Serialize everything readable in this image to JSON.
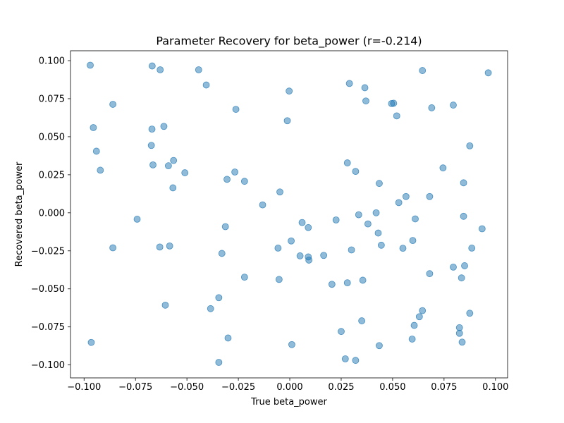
{
  "chart_data": {
    "type": "scatter",
    "title": "Parameter Recovery for beta_power (r=-0.214)",
    "xlabel": "True beta_power",
    "ylabel": "Recovered beta_power",
    "xlim": [
      -0.1066,
      0.1059
    ],
    "ylim": [
      -0.1085,
      0.1065
    ],
    "xticks": [
      -0.1,
      -0.075,
      -0.05,
      -0.025,
      0.0,
      0.025,
      0.05,
      0.075,
      0.1
    ],
    "xtick_labels": [
      "−0.100",
      "−0.075",
      "−0.050",
      "−0.025",
      "0.000",
      "0.025",
      "0.050",
      "0.075",
      "0.100"
    ],
    "yticks": [
      -0.1,
      -0.075,
      -0.05,
      -0.025,
      0.0,
      0.025,
      0.05,
      0.075,
      0.1
    ],
    "ytick_labels": [
      "−0.100",
      "−0.075",
      "−0.050",
      "−0.025",
      "0.000",
      "0.025",
      "0.050",
      "0.075",
      "0.100"
    ],
    "grid": false,
    "legend": "none",
    "marker_color": "#1f77b4",
    "marker_alpha": 0.5,
    "points": [
      {
        "x": -0.097,
        "y": 0.097
      },
      {
        "x": -0.0669,
        "y": 0.0965
      },
      {
        "x": -0.063,
        "y": 0.094
      },
      {
        "x": -0.0443,
        "y": 0.094
      },
      {
        "x": -0.0406,
        "y": 0.084
      },
      {
        "x": -0.086,
        "y": 0.0713
      },
      {
        "x": -0.0262,
        "y": 0.068
      },
      {
        "x": -0.0003,
        "y": 0.08
      },
      {
        "x": -0.0955,
        "y": 0.056
      },
      {
        "x": -0.067,
        "y": 0.055
      },
      {
        "x": -0.0612,
        "y": 0.0568
      },
      {
        "x": -0.0012,
        "y": 0.0605
      },
      {
        "x": -0.094,
        "y": 0.0405
      },
      {
        "x": -0.0673,
        "y": 0.0443
      },
      {
        "x": -0.0565,
        "y": 0.0344
      },
      {
        "x": -0.059,
        "y": 0.0309
      },
      {
        "x": -0.0665,
        "y": 0.0315
      },
      {
        "x": -0.0921,
        "y": 0.028
      },
      {
        "x": -0.051,
        "y": 0.0263
      },
      {
        "x": -0.0568,
        "y": 0.0164
      },
      {
        "x": -0.0267,
        "y": 0.0268
      },
      {
        "x": -0.0305,
        "y": 0.022
      },
      {
        "x": -0.022,
        "y": 0.0207
      },
      {
        "x": -0.0132,
        "y": 0.0052
      },
      {
        "x": -0.0048,
        "y": 0.0137
      },
      {
        "x": -0.0742,
        "y": -0.0042
      },
      {
        "x": -0.0313,
        "y": -0.0091
      },
      {
        "x": -0.086,
        "y": -0.023
      },
      {
        "x": -0.0632,
        "y": -0.0225
      },
      {
        "x": -0.0584,
        "y": -0.0218
      },
      {
        "x": -0.033,
        "y": -0.0267
      },
      {
        "x": -0.0057,
        "y": -0.0232
      },
      {
        "x": 0.0007,
        "y": -0.0185
      },
      {
        "x": 0.006,
        "y": -0.0064
      },
      {
        "x": 0.009,
        "y": -0.0097
      },
      {
        "x": 0.005,
        "y": -0.0283
      },
      {
        "x": 0.009,
        "y": -0.029
      },
      {
        "x": 0.0093,
        "y": -0.0311
      },
      {
        "x": 0.0165,
        "y": -0.028
      },
      {
        "x": 0.0225,
        "y": -0.0047
      },
      {
        "x": 0.03,
        "y": -0.0244
      },
      {
        "x": -0.022,
        "y": -0.0423
      },
      {
        "x": -0.0052,
        "y": -0.0438
      },
      {
        "x": 0.0205,
        "y": -0.047
      },
      {
        "x": 0.028,
        "y": -0.046
      },
      {
        "x": 0.0355,
        "y": -0.0443
      },
      {
        "x": -0.0605,
        "y": -0.0607
      },
      {
        "x": -0.0385,
        "y": -0.063
      },
      {
        "x": -0.0345,
        "y": -0.0558
      },
      {
        "x": -0.03,
        "y": -0.0823
      },
      {
        "x": -0.0965,
        "y": -0.0852
      },
      {
        "x": -0.0345,
        "y": -0.0983
      },
      {
        "x": 0.001,
        "y": -0.0866
      },
      {
        "x": 0.025,
        "y": -0.078
      },
      {
        "x": 0.035,
        "y": -0.071
      },
      {
        "x": 0.027,
        "y": -0.096
      },
      {
        "x": 0.032,
        "y": -0.097
      },
      {
        "x": 0.0435,
        "y": -0.0873
      },
      {
        "x": 0.029,
        "y": 0.085
      },
      {
        "x": 0.0365,
        "y": 0.0822
      },
      {
        "x": 0.037,
        "y": 0.0735
      },
      {
        "x": 0.0495,
        "y": 0.0718
      },
      {
        "x": 0.0505,
        "y": 0.072
      },
      {
        "x": 0.052,
        "y": 0.0637
      },
      {
        "x": 0.0645,
        "y": 0.0935
      },
      {
        "x": 0.069,
        "y": 0.069
      },
      {
        "x": 0.0795,
        "y": 0.0708
      },
      {
        "x": 0.0965,
        "y": 0.092
      },
      {
        "x": 0.0875,
        "y": 0.044
      },
      {
        "x": 0.028,
        "y": 0.0328
      },
      {
        "x": 0.032,
        "y": 0.0272
      },
      {
        "x": 0.0435,
        "y": 0.0193
      },
      {
        "x": 0.0745,
        "y": 0.0295
      },
      {
        "x": 0.0845,
        "y": 0.0197
      },
      {
        "x": 0.0565,
        "y": 0.0107
      },
      {
        "x": 0.053,
        "y": 0.0067
      },
      {
        "x": 0.068,
        "y": 0.0107
      },
      {
        "x": 0.0335,
        "y": -0.0013
      },
      {
        "x": 0.038,
        "y": -0.0073
      },
      {
        "x": 0.042,
        "y": 0.0
      },
      {
        "x": 0.043,
        "y": -0.0133
      },
      {
        "x": 0.0445,
        "y": -0.0213
      },
      {
        "x": 0.055,
        "y": -0.0233
      },
      {
        "x": 0.0598,
        "y": -0.0182
      },
      {
        "x": 0.061,
        "y": -0.004
      },
      {
        "x": 0.0845,
        "y": -0.0023
      },
      {
        "x": 0.0935,
        "y": -0.0105
      },
      {
        "x": 0.0885,
        "y": -0.0232
      },
      {
        "x": 0.085,
        "y": -0.0348
      },
      {
        "x": 0.0795,
        "y": -0.0357
      },
      {
        "x": 0.068,
        "y": -0.04
      },
      {
        "x": 0.0835,
        "y": -0.0428
      },
      {
        "x": 0.0645,
        "y": -0.0643
      },
      {
        "x": 0.063,
        "y": -0.0683
      },
      {
        "x": 0.0605,
        "y": -0.074
      },
      {
        "x": 0.0875,
        "y": -0.066
      },
      {
        "x": 0.0825,
        "y": -0.0755
      },
      {
        "x": 0.0825,
        "y": -0.0792
      },
      {
        "x": 0.0595,
        "y": -0.083
      },
      {
        "x": 0.0838,
        "y": -0.085
      }
    ]
  }
}
